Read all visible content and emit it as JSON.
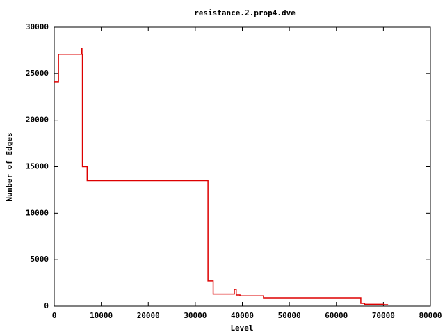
{
  "chart_data": {
    "type": "line",
    "title": "resistance.2.prop4.dve",
    "x_label": "Level",
    "y_label": "Number of Edges",
    "x": [
      0,
      900,
      900,
      5800,
      5800,
      5900,
      5900,
      6000,
      6000,
      7000,
      7000,
      32700,
      32700,
      33800,
      33800,
      38300,
      38300,
      38700,
      38700,
      39500,
      39500,
      44500,
      44500,
      65200,
      65200,
      66000,
      66000,
      70000,
      70000,
      71000
    ],
    "series": [
      {
        "color": "#dd0000",
        "values": [
          24100,
          24100,
          27100,
          27100,
          27700,
          27700,
          27100,
          27100,
          15000,
          15000,
          13500,
          13500,
          2700,
          2700,
          1300,
          1300,
          1800,
          1800,
          1200,
          1200,
          1100,
          1100,
          900,
          900,
          300,
          300,
          200,
          200,
          150,
          150
        ]
      }
    ],
    "xlim": [
      0,
      80000
    ],
    "ylim": [
      0,
      30000
    ],
    "xticks": [
      0,
      10000,
      20000,
      30000,
      40000,
      50000,
      60000,
      70000,
      80000
    ],
    "yticks": [
      0,
      5000,
      10000,
      15000,
      20000,
      25000,
      30000
    ]
  }
}
